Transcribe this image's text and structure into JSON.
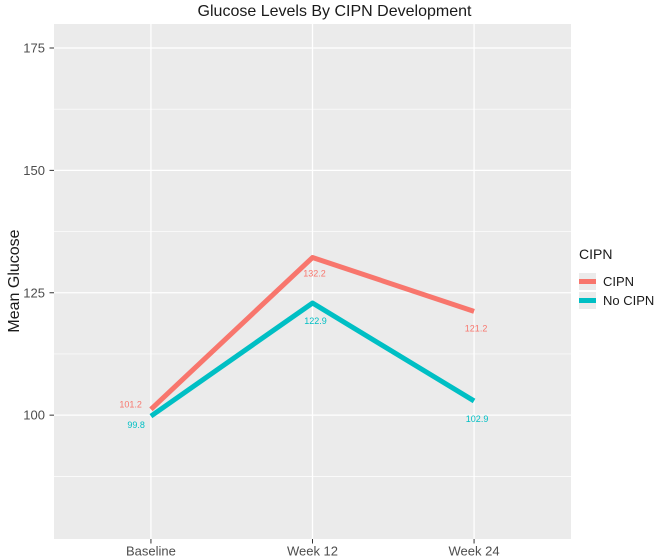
{
  "chart_data": {
    "type": "line",
    "title": "Glucose Levels By CIPN Development",
    "xlabel": "",
    "ylabel": "Mean Glucose",
    "categories": [
      "Baseline",
      "Week 12",
      "Week 24"
    ],
    "series": [
      {
        "name": "CIPN",
        "color": "#F8766D",
        "values": [
          101.2,
          132.2,
          121.2
        ],
        "labels": [
          "101.2",
          "132.2",
          "121.2"
        ]
      },
      {
        "name": "No CIPN",
        "color": "#00BFC4",
        "values": [
          99.8,
          122.9,
          102.9
        ],
        "labels": [
          "99.8",
          "122.9",
          "102.9"
        ]
      }
    ],
    "yticks": [
      100,
      125,
      150,
      175
    ],
    "ytick_labels": [
      "100",
      "125",
      "150",
      "175"
    ],
    "ylim": [
      74.7,
      179.9
    ],
    "grid": "on",
    "legend": {
      "title": "CIPN",
      "position": "right",
      "entries": [
        "CIPN",
        "No CIPN"
      ]
    },
    "colors": {
      "panel_bg": "#EBEBEB",
      "gridline": "#FFFFFF",
      "tick_label": "#4D4D4D",
      "axis_tick": "#333333",
      "title_text": "#1A1A1A",
      "legend_key_bg": "#EBEBEB"
    }
  }
}
